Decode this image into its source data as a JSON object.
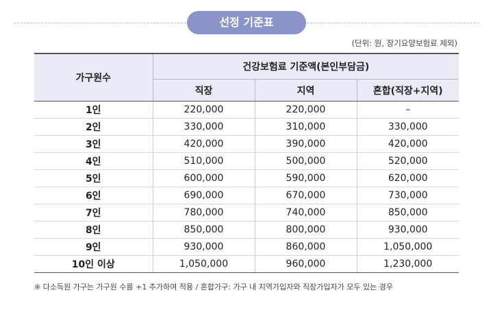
{
  "header": {
    "title": "선정 기준표",
    "unit_note": "(단위: 원, 장기요양보험료 제외)"
  },
  "table": {
    "household_header": "가구원수",
    "group_header": "건강보험료 기준액(본인부담금)",
    "sub_headers": [
      "직장",
      "지역",
      "혼합(직장+지역)"
    ],
    "rows": [
      {
        "household": "1인",
        "workplace": "220,000",
        "regional": "220,000",
        "mixed": "–"
      },
      {
        "household": "2인",
        "workplace": "330,000",
        "regional": "310,000",
        "mixed": "330,000"
      },
      {
        "household": "3인",
        "workplace": "420,000",
        "regional": "390,000",
        "mixed": "420,000"
      },
      {
        "household": "4인",
        "workplace": "510,000",
        "regional": "500,000",
        "mixed": "520,000"
      },
      {
        "household": "5인",
        "workplace": "600,000",
        "regional": "590,000",
        "mixed": "620,000"
      },
      {
        "household": "6인",
        "workplace": "690,000",
        "regional": "670,000",
        "mixed": "730,000"
      },
      {
        "household": "7인",
        "workplace": "780,000",
        "regional": "740,000",
        "mixed": "850,000"
      },
      {
        "household": "8인",
        "workplace": "850,000",
        "regional": "800,000",
        "mixed": "930,000"
      },
      {
        "household": "9인",
        "workplace": "930,000",
        "regional": "860,000",
        "mixed": "1,050,000"
      },
      {
        "household": "10인 이상",
        "workplace": "1,050,000",
        "regional": "960,000",
        "mixed": "1,230,000"
      }
    ]
  },
  "footnote": "※ 다소득원 가구는 가구원 수를 +1 추가하여 적용 / 혼합가구: 가구 내 지역가입자와 직장가입자가 모두 있는 경우",
  "colors": {
    "title_pill": "#8b93c9",
    "header_bg": "#e9ecf7"
  }
}
